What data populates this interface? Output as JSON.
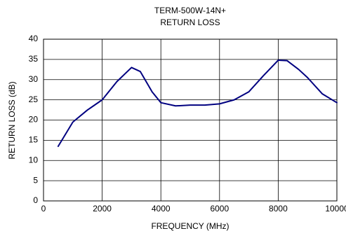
{
  "chart_data": {
    "type": "line",
    "title": "TERM-500W-14N+",
    "subtitle": "RETURN LOSS",
    "x_label": "FREQUENCY (MHz)",
    "y_label": "RETURN LOSS (dB)",
    "x": [
      500,
      1000,
      1500,
      2000,
      2500,
      3000,
      3300,
      3700,
      4000,
      4500,
      5000,
      5500,
      6000,
      6500,
      7000,
      7500,
      8000,
      8300,
      8700,
      9000,
      9500,
      10000
    ],
    "series": [
      {
        "name": "RETURN LOSS",
        "color": "#000080",
        "values": [
          13.5,
          19.5,
          22.5,
          25,
          29.5,
          33,
          32,
          27,
          24.3,
          23.5,
          23.7,
          23.7,
          24,
          25,
          27,
          31,
          34.8,
          34.7,
          32.5,
          30.5,
          26.5,
          24.3
        ]
      }
    ],
    "xlim": [
      0,
      10000
    ],
    "xticks": [
      0,
      2000,
      4000,
      6000,
      8000,
      10000
    ],
    "ylim": [
      0,
      40
    ],
    "yticks": [
      0,
      5,
      10,
      15,
      20,
      25,
      30,
      35,
      40
    ],
    "grid": true
  }
}
